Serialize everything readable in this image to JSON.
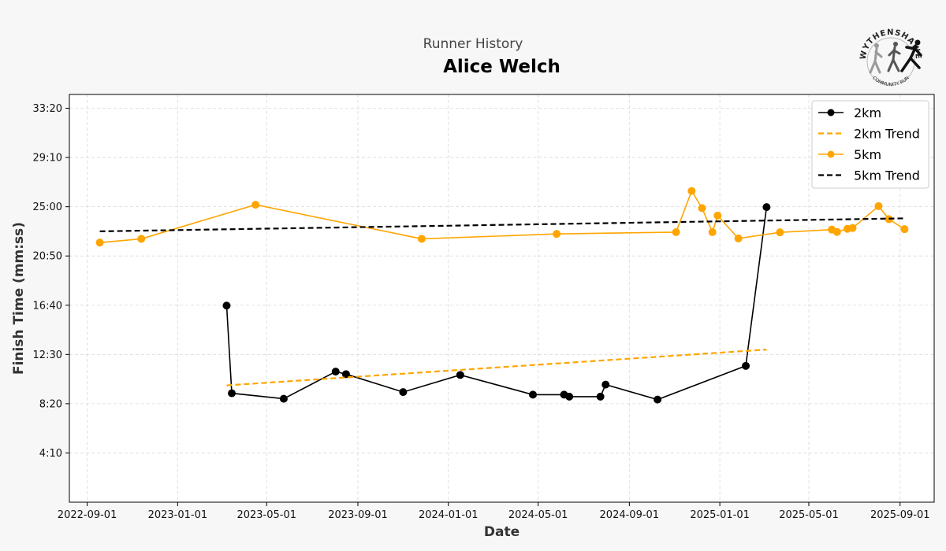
{
  "page": {
    "suptitle": "Runner History",
    "title": "Alice Welch",
    "logo": {
      "icon": "running-figures-logo",
      "text_top": "WYTHENSHAWE",
      "text_bottom": "COMMUNITY RUN"
    }
  },
  "chart_data": {
    "type": "line",
    "xlabel": "Date",
    "ylabel": "Finish Time (mm:ss)",
    "x_type": "date",
    "xlim": [
      "2022-08-08",
      "2025-10-17"
    ],
    "ylim_seconds": [
      0,
      2070
    ],
    "x_ticks": [
      {
        "date": "2022-09-01",
        "label": "2022-09-01"
      },
      {
        "date": "2023-01-01",
        "label": "2023-01-01"
      },
      {
        "date": "2023-05-01",
        "label": "2023-05-01"
      },
      {
        "date": "2023-09-01",
        "label": "2023-09-01"
      },
      {
        "date": "2024-01-01",
        "label": "2024-01-01"
      },
      {
        "date": "2024-05-01",
        "label": "2024-05-01"
      },
      {
        "date": "2024-09-01",
        "label": "2024-09-01"
      },
      {
        "date": "2025-01-01",
        "label": "2025-01-01"
      },
      {
        "date": "2025-05-01",
        "label": "2025-05-01"
      },
      {
        "date": "2025-09-01",
        "label": "2025-09-01"
      }
    ],
    "y_ticks": [
      {
        "seconds": 250,
        "label": "4:10"
      },
      {
        "seconds": 500,
        "label": "8:20"
      },
      {
        "seconds": 750,
        "label": "12:30"
      },
      {
        "seconds": 1000,
        "label": "16:40"
      },
      {
        "seconds": 1250,
        "label": "20:50"
      },
      {
        "seconds": 1500,
        "label": "25:00"
      },
      {
        "seconds": 1750,
        "label": "29:10"
      },
      {
        "seconds": 2000,
        "label": "33:20"
      }
    ],
    "grid": true,
    "legend_position": "top-right",
    "series": [
      {
        "name": "2km",
        "kind": "line-markers",
        "color": "#000000",
        "points": [
          {
            "x": "2023-03-08",
            "y": 998
          },
          {
            "x": "2023-03-15",
            "y": 553
          },
          {
            "x": "2023-05-24",
            "y": 525
          },
          {
            "x": "2023-08-02",
            "y": 663
          },
          {
            "x": "2023-08-16",
            "y": 650
          },
          {
            "x": "2023-11-01",
            "y": 559
          },
          {
            "x": "2024-01-17",
            "y": 646
          },
          {
            "x": "2024-04-24",
            "y": 546
          },
          {
            "x": "2024-06-05",
            "y": 546
          },
          {
            "x": "2024-06-12",
            "y": 536
          },
          {
            "x": "2024-07-24",
            "y": 536
          },
          {
            "x": "2024-07-31",
            "y": 597
          },
          {
            "x": "2024-10-09",
            "y": 521
          },
          {
            "x": "2025-02-05",
            "y": 692
          },
          {
            "x": "2025-03-05",
            "y": 1498
          }
        ]
      },
      {
        "name": "2km Trend",
        "kind": "dashed",
        "color": "#ffa500",
        "points": [
          {
            "x": "2023-03-08",
            "y": 593
          },
          {
            "x": "2025-03-05",
            "y": 775
          }
        ]
      },
      {
        "name": "5km",
        "kind": "line-markers",
        "color": "#ffa500",
        "points": [
          {
            "x": "2022-09-18",
            "y": 1318
          },
          {
            "x": "2022-11-13",
            "y": 1337
          },
          {
            "x": "2023-04-16",
            "y": 1510
          },
          {
            "x": "2023-11-26",
            "y": 1337
          },
          {
            "x": "2024-05-26",
            "y": 1362
          },
          {
            "x": "2024-11-03",
            "y": 1371
          },
          {
            "x": "2024-11-24",
            "y": 1580
          },
          {
            "x": "2024-12-08",
            "y": 1493
          },
          {
            "x": "2024-12-22",
            "y": 1371
          },
          {
            "x": "2024-12-29",
            "y": 1455
          },
          {
            "x": "2025-01-26",
            "y": 1339
          },
          {
            "x": "2025-03-23",
            "y": 1370
          },
          {
            "x": "2025-06-01",
            "y": 1384
          },
          {
            "x": "2025-06-08",
            "y": 1372
          },
          {
            "x": "2025-06-22",
            "y": 1388
          },
          {
            "x": "2025-06-29",
            "y": 1392
          },
          {
            "x": "2025-08-03",
            "y": 1503
          },
          {
            "x": "2025-08-17",
            "y": 1437
          },
          {
            "x": "2025-09-07",
            "y": 1386
          }
        ]
      },
      {
        "name": "5km Trend",
        "kind": "dashed",
        "color": "#000000",
        "points": [
          {
            "x": "2022-09-18",
            "y": 1375
          },
          {
            "x": "2025-09-07",
            "y": 1441
          }
        ]
      }
    ]
  }
}
